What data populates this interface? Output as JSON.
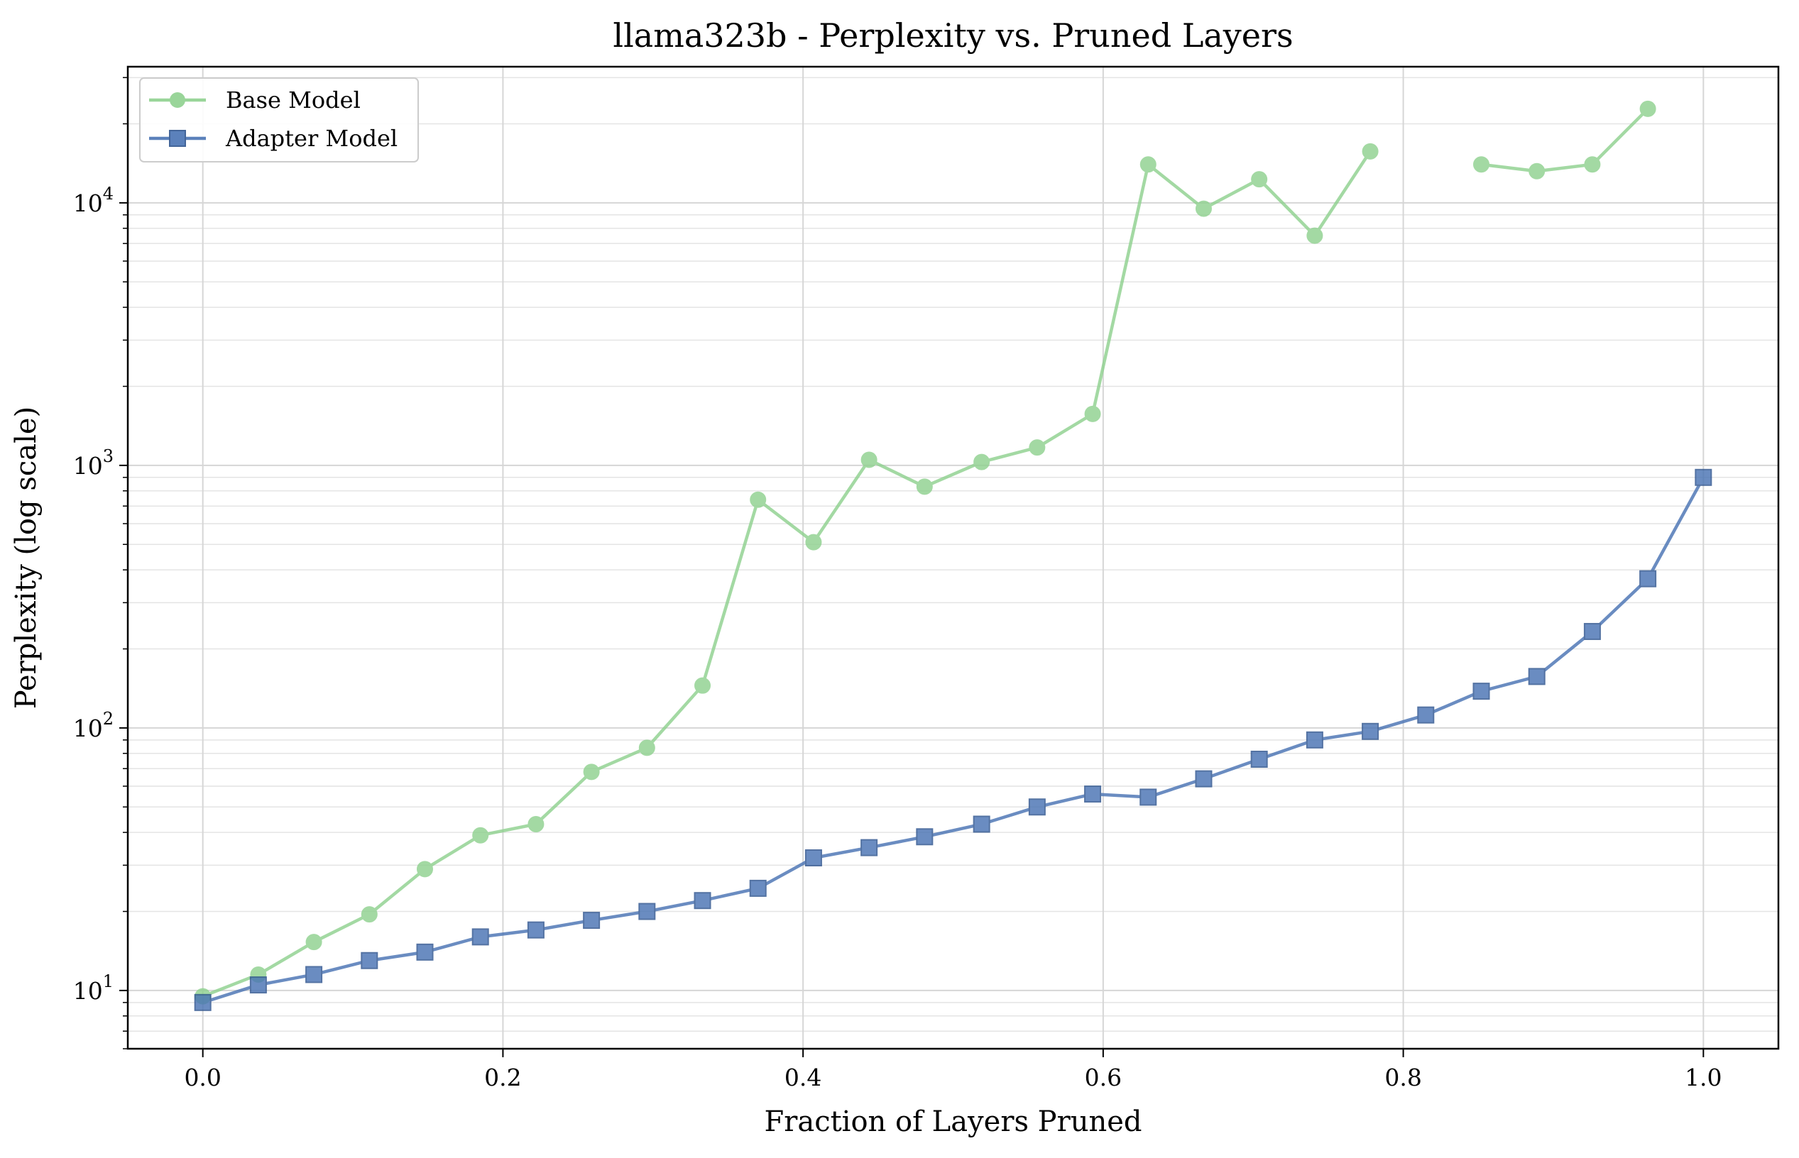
{
  "chart_data": {
    "type": "line",
    "title": "llama323b - Perplexity vs. Pruned Layers",
    "xlabel": "Fraction of Layers Pruned",
    "ylabel": "Perplexity (log scale)",
    "yscale": "log",
    "xlim": [
      -0.05,
      1.05
    ],
    "ylim": [
      6,
      33000
    ],
    "xticks": [
      "0.0",
      "0.2",
      "0.4",
      "0.6",
      "0.8",
      "1.0"
    ],
    "xtick_values": [
      0,
      0.2,
      0.4,
      0.6,
      0.8,
      1.0
    ],
    "yticks": [
      {
        "base": "10",
        "exp": "1",
        "value": 10
      },
      {
        "base": "10",
        "exp": "2",
        "value": 100
      },
      {
        "base": "10",
        "exp": "3",
        "value": 1000
      },
      {
        "base": "10",
        "exp": "4",
        "value": 10000
      }
    ],
    "grid": true,
    "legend_position": "top-left",
    "series": [
      {
        "name": "Base Model",
        "color": "#8fd18f",
        "marker": "circle",
        "x": [
          0.0,
          0.037,
          0.074,
          0.111,
          0.148,
          0.185,
          0.222,
          0.259,
          0.296,
          0.333,
          0.37,
          0.407,
          0.444,
          0.481,
          0.519,
          0.556,
          0.593,
          0.63,
          0.667,
          0.704,
          0.741,
          0.778,
          0.815,
          0.852,
          0.889,
          0.926,
          0.963
        ],
        "values": [
          9.5,
          11.5,
          15.3,
          19.5,
          29,
          39,
          43,
          68,
          84,
          145,
          740,
          510,
          1050,
          830,
          1030,
          1170,
          1570,
          14000,
          9500,
          12300,
          7500,
          15700,
          null,
          14000,
          13200,
          14000,
          22800
        ]
      },
      {
        "name": "Adapter Model",
        "color": "#4a74b4",
        "marker": "square",
        "x": [
          0.0,
          0.037,
          0.074,
          0.111,
          0.148,
          0.185,
          0.222,
          0.259,
          0.296,
          0.333,
          0.37,
          0.407,
          0.444,
          0.481,
          0.519,
          0.556,
          0.593,
          0.63,
          0.667,
          0.704,
          0.741,
          0.778,
          0.815,
          0.852,
          0.889,
          0.926,
          0.963,
          1.0
        ],
        "values": [
          9.0,
          10.5,
          11.5,
          13,
          14,
          16,
          17,
          18.5,
          20,
          22,
          24.5,
          32,
          35,
          38.5,
          43,
          50,
          56,
          54.5,
          64,
          76,
          90,
          97,
          112,
          138,
          157,
          233,
          370,
          900
        ]
      }
    ]
  }
}
